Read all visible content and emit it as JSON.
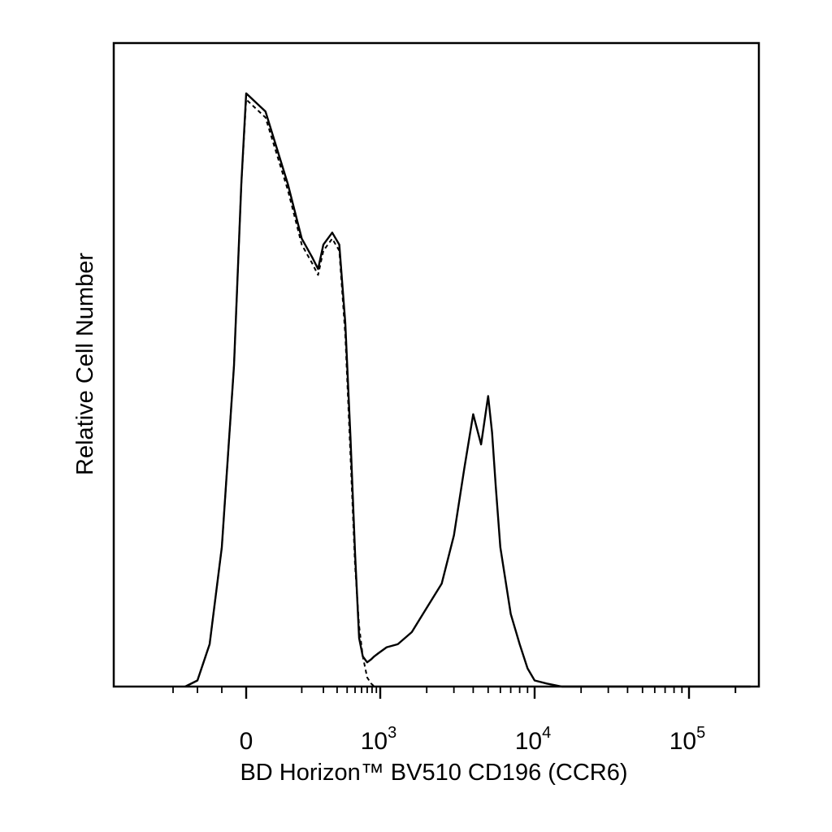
{
  "chart_data": {
    "type": "line",
    "xlabel": "BD Horizon™ BV510 CD196 (CCR6)",
    "ylabel": "Relative Cell Number",
    "x_scale": "biexponential",
    "xlim": [
      -300,
      250000
    ],
    "ylim": [
      0,
      100
    ],
    "grid": false,
    "legend": "none",
    "x_ticks": [
      {
        "value": 0,
        "base": "0",
        "exp": ""
      },
      {
        "value": 1000,
        "base": "10",
        "exp": "3"
      },
      {
        "value": 10000,
        "base": "10",
        "exp": "4"
      },
      {
        "value": 100000,
        "base": "10",
        "exp": "5"
      }
    ],
    "series": [
      {
        "style": "solid",
        "color": "#000000",
        "x": [
          -250,
          -200,
          -150,
          -100,
          -50,
          -20,
          0,
          20,
          60,
          100,
          140,
          170,
          200,
          260,
          320,
          380,
          440,
          500,
          560,
          620,
          700,
          780,
          850,
          950,
          1100,
          1300,
          1600,
          2000,
          2500,
          3000,
          3500,
          4000,
          4500,
          5000,
          5300,
          5600,
          6000,
          7000,
          8000,
          9000,
          10000,
          12000,
          15000,
          20000,
          50000,
          100000,
          250000
        ],
        "y": [
          0,
          1,
          7,
          23,
          53,
          83,
          98,
          95,
          83,
          74,
          71,
          69,
          73,
          75,
          73,
          60,
          41,
          22,
          8,
          5,
          4,
          4.5,
          5,
          5.5,
          6.5,
          7,
          9,
          13,
          17,
          25,
          36,
          45,
          40,
          48,
          42,
          33,
          23,
          12,
          7,
          3,
          1,
          0.5,
          0,
          0,
          0,
          0,
          0
        ]
      },
      {
        "style": "dashed",
        "color": "#000000",
        "x": [
          -250,
          -200,
          -150,
          -100,
          -50,
          -20,
          0,
          20,
          60,
          100,
          140,
          170,
          200,
          260,
          320,
          380,
          440,
          500,
          560,
          620,
          700,
          780,
          850,
          1000,
          2000,
          5000,
          10000,
          100000,
          250000
        ],
        "y": [
          0,
          1,
          7,
          23,
          53,
          83,
          97,
          94,
          82,
          73,
          70,
          68,
          72,
          74,
          72,
          58,
          38,
          20,
          10,
          5,
          1.5,
          0.5,
          0,
          0,
          0,
          0,
          0,
          0,
          0
        ]
      }
    ]
  }
}
